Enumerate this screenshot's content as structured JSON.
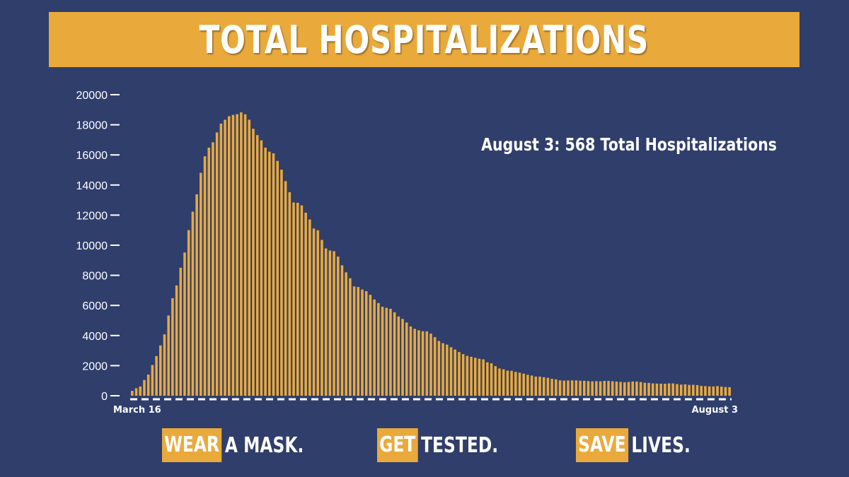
{
  "header": {
    "title": "TOTAL HOSPITALIZATIONS"
  },
  "colors": {
    "background": "#303e6c",
    "accent": "#eaaa3b",
    "text": "#ffffff"
  },
  "chart_data": {
    "type": "bar",
    "title": "TOTAL HOSPITALIZATIONS",
    "annotation": "August 3: 568 Total Hospitalizations",
    "x_tick_labels": [
      "March 16",
      "August 3"
    ],
    "y_ticks": [
      0,
      2000,
      4000,
      6000,
      8000,
      10000,
      12000,
      14000,
      16000,
      18000,
      20000
    ],
    "y_tick_labels": [
      "0",
      "2000",
      "4000",
      "6000",
      "8000",
      "10000",
      "12000",
      "14000",
      "16000",
      "18000",
      "20000"
    ],
    "ylim": [
      0,
      20000
    ],
    "grid": false,
    "bar_color": "#eaaa3b",
    "values": [
      326,
      496,
      617,
      1042,
      1406,
      2043,
      2635,
      3343,
      4079,
      5327,
      6481,
      7328,
      8503,
      9517,
      11001,
      12226,
      13383,
      14810,
      15905,
      16479,
      16837,
      17493,
      18079,
      18335,
      18569,
      18654,
      18706,
      18825,
      18697,
      18335,
      17735,
      17316,
      16967,
      16479,
      16213,
      16103,
      15599,
      15021,
      14258,
      13524,
      12839,
      12819,
      12646,
      12159,
      11708,
      11109,
      10993,
      10350,
      9786,
      9647,
      9600,
      9243,
      8665,
      8196,
      7805,
      7262,
      7226,
      7057,
      6946,
      6706,
      6394,
      6157,
      5912,
      5842,
      5775,
      5540,
      5266,
      5104,
      4864,
      4604,
      4445,
      4348,
      4284,
      4272,
      4126,
      3890,
      3640,
      3491,
      3396,
      3222,
      3069,
      2903,
      2761,
      2648,
      2588,
      2522,
      2458,
      2415,
      2220,
      2153,
      1965,
      1808,
      1756,
      1667,
      1654,
      1581,
      1530,
      1467,
      1389,
      1340,
      1273,
      1270,
      1231,
      1189,
      1123,
      1088,
      1021,
      1005,
      1014,
      1021,
      1022,
      997,
      989,
      970,
      956,
      965,
      959,
      986,
      987,
      961,
      939,
      917,
      893,
      917,
      944,
      940,
      907,
      863,
      853,
      820,
      806,
      800,
      797,
      819,
      819,
      776,
      740,
      756,
      721,
      725,
      706,
      651,
      636,
      618,
      616,
      640,
      603,
      578,
      568
    ]
  },
  "footer": {
    "slogans": [
      {
        "highlight": "WEAR",
        "rest": "A MASK."
      },
      {
        "highlight": "GET",
        "rest": "TESTED."
      },
      {
        "highlight": "SAVE",
        "rest": "LIVES."
      }
    ]
  }
}
